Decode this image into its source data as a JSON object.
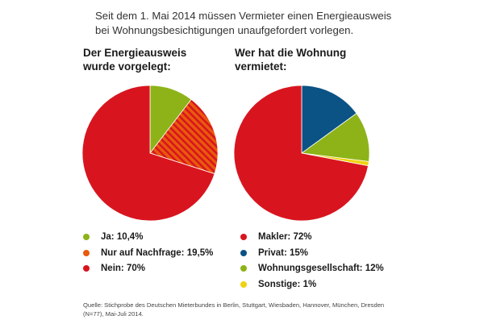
{
  "intro": {
    "line1": "Seit dem 1. Mai 2014 müssen Vermieter einen Energieausweis",
    "line2": "bei Wohnungsbesichtigungen unaufgefordert vorlegen."
  },
  "chart_data": [
    {
      "type": "pie",
      "title_line1": "Der Energieausweis",
      "title_line2": "wurde vorgelegt:",
      "slices": [
        {
          "label": "Ja",
          "value": 10.4,
          "display": "Ja: 10,4%",
          "color": "#8db319"
        },
        {
          "label": "Nur auf Nachfrage",
          "value": 19.5,
          "display": "Nur auf Nachfrage: 19,5%",
          "color": "#e95a0c",
          "pattern": "hatch",
          "pattern_color": "#d8151f"
        },
        {
          "label": "Nein",
          "value": 70,
          "display": "Nein: 70%",
          "color": "#d8151f"
        }
      ]
    },
    {
      "type": "pie",
      "title_line1": "Wer hat die Wohnung",
      "title_line2": "vermietet:",
      "slices": [
        {
          "label": "Privat",
          "value": 15,
          "display": "Privat: 15%",
          "color": "#0b5285"
        },
        {
          "label": "Wohnungsgesellschaft",
          "value": 12,
          "display": "Wohnungsgesellschaft: 12%",
          "color": "#8db319"
        },
        {
          "label": "Sonstige",
          "value": 1,
          "display": "Sonstige: 1%",
          "color": "#f0d20f"
        },
        {
          "label": "Makler",
          "value": 72,
          "display": "Makler: 72%",
          "color": "#d8151f"
        }
      ],
      "legend_order": [
        "Makler",
        "Privat",
        "Wohnungsgesellschaft",
        "Sonstige"
      ]
    }
  ],
  "source": {
    "line1": "Quelle: Stichprobe des Deutschen Mieterbundes in Berlin, Stuttgart, Wiesbaden, Hannover, München, Dresden",
    "line2": "(N=77), Mai-Juli 2014."
  }
}
